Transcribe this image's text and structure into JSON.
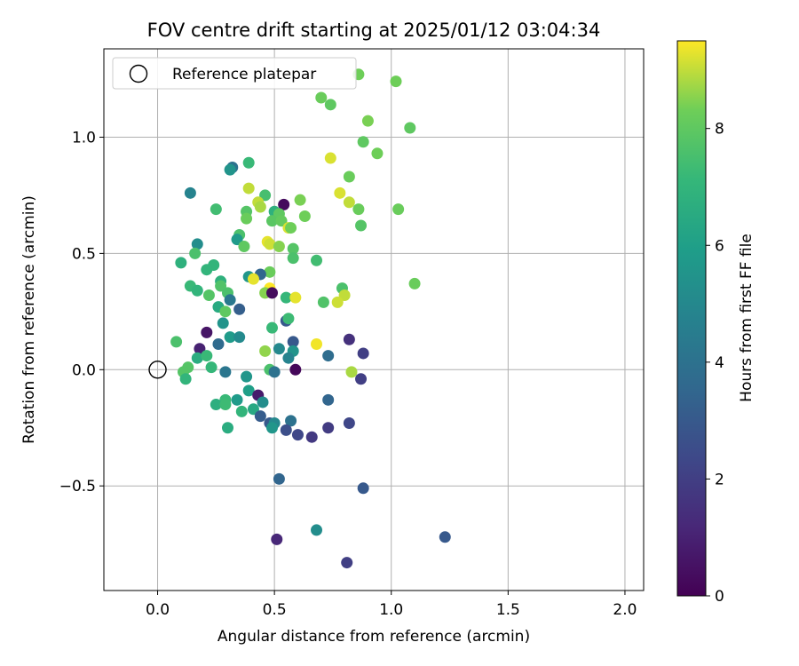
{
  "chart_data": {
    "type": "scatter",
    "title": "FOV centre drift starting at 2025/01/12 03:04:34",
    "xlabel": "Angular distance from reference (arcmin)",
    "ylabel": "Rotation from reference (arcmin)",
    "xlim": [
      -0.23,
      2.08
    ],
    "ylim": [
      -0.95,
      1.38
    ],
    "xticks": [
      0.0,
      0.5,
      1.0,
      1.5,
      2.0
    ],
    "xtick_labels": [
      "0.0",
      "0.5",
      "1.0",
      "1.5",
      "2.0"
    ],
    "yticks": [
      -0.5,
      0.0,
      0.5,
      1.0
    ],
    "ytick_labels": [
      "−0.5",
      "0.0",
      "0.5",
      "1.0"
    ],
    "grid": true,
    "legend": {
      "position": "top-left",
      "entries": [
        "Reference platepar"
      ]
    },
    "reference_point": {
      "x": 0.0,
      "y": 0.0
    },
    "colorbar": {
      "label": "Hours from first FF file",
      "range": [
        0,
        9.5
      ],
      "ticks": [
        0,
        2,
        4,
        6,
        8
      ],
      "tick_labels": [
        "0",
        "2",
        "4",
        "6",
        "8"
      ],
      "colormap": "viridis"
    },
    "points": [
      {
        "x": 0.86,
        "y": 1.27,
        "h": 8.3
      },
      {
        "x": 1.02,
        "y": 1.24,
        "h": 8.3
      },
      {
        "x": 0.7,
        "y": 1.17,
        "h": 8.2
      },
      {
        "x": 0.74,
        "y": 1.14,
        "h": 8.0
      },
      {
        "x": 0.9,
        "y": 1.07,
        "h": 8.4
      },
      {
        "x": 1.08,
        "y": 1.04,
        "h": 8.0
      },
      {
        "x": 0.88,
        "y": 0.98,
        "h": 8.0
      },
      {
        "x": 0.94,
        "y": 0.93,
        "h": 8.3
      },
      {
        "x": 0.74,
        "y": 0.91,
        "h": 9.2
      },
      {
        "x": 0.39,
        "y": 0.89,
        "h": 7.2
      },
      {
        "x": 0.32,
        "y": 0.87,
        "h": 4.0
      },
      {
        "x": 0.31,
        "y": 0.86,
        "h": 5.5
      },
      {
        "x": 0.82,
        "y": 0.83,
        "h": 8.2
      },
      {
        "x": 0.14,
        "y": 0.76,
        "h": 4.8
      },
      {
        "x": 0.39,
        "y": 0.78,
        "h": 9.0
      },
      {
        "x": 0.78,
        "y": 0.76,
        "h": 9.2
      },
      {
        "x": 0.46,
        "y": 0.75,
        "h": 7.5
      },
      {
        "x": 0.61,
        "y": 0.73,
        "h": 8.4
      },
      {
        "x": 0.82,
        "y": 0.72,
        "h": 9.0
      },
      {
        "x": 0.43,
        "y": 0.72,
        "h": 9.0
      },
      {
        "x": 0.54,
        "y": 0.71,
        "h": 0.3
      },
      {
        "x": 0.44,
        "y": 0.7,
        "h": 8.8
      },
      {
        "x": 0.86,
        "y": 0.69,
        "h": 8.2
      },
      {
        "x": 1.03,
        "y": 0.69,
        "h": 8.2
      },
      {
        "x": 0.25,
        "y": 0.69,
        "h": 7.4
      },
      {
        "x": 0.38,
        "y": 0.68,
        "h": 7.8
      },
      {
        "x": 0.5,
        "y": 0.68,
        "h": 6.8
      },
      {
        "x": 0.52,
        "y": 0.67,
        "h": 8.0
      },
      {
        "x": 0.63,
        "y": 0.66,
        "h": 8.3
      },
      {
        "x": 0.38,
        "y": 0.65,
        "h": 8.2
      },
      {
        "x": 0.49,
        "y": 0.64,
        "h": 7.9
      },
      {
        "x": 0.53,
        "y": 0.64,
        "h": 8.1
      },
      {
        "x": 0.87,
        "y": 0.62,
        "h": 7.8
      },
      {
        "x": 0.56,
        "y": 0.61,
        "h": 9.2
      },
      {
        "x": 0.57,
        "y": 0.61,
        "h": 8.3
      },
      {
        "x": 0.35,
        "y": 0.58,
        "h": 7.6
      },
      {
        "x": 0.34,
        "y": 0.56,
        "h": 5.8
      },
      {
        "x": 0.17,
        "y": 0.54,
        "h": 5.2
      },
      {
        "x": 0.47,
        "y": 0.55,
        "h": 9.3
      },
      {
        "x": 0.48,
        "y": 0.54,
        "h": 9.1
      },
      {
        "x": 0.52,
        "y": 0.53,
        "h": 8.5
      },
      {
        "x": 0.37,
        "y": 0.53,
        "h": 8.0
      },
      {
        "x": 0.58,
        "y": 0.52,
        "h": 7.8
      },
      {
        "x": 0.16,
        "y": 0.5,
        "h": 7.6
      },
      {
        "x": 0.58,
        "y": 0.48,
        "h": 7.6
      },
      {
        "x": 0.68,
        "y": 0.47,
        "h": 7.4
      },
      {
        "x": 0.1,
        "y": 0.46,
        "h": 6.8
      },
      {
        "x": 0.24,
        "y": 0.45,
        "h": 7.0
      },
      {
        "x": 0.21,
        "y": 0.43,
        "h": 7.0
      },
      {
        "x": 0.48,
        "y": 0.42,
        "h": 8.2
      },
      {
        "x": 0.44,
        "y": 0.41,
        "h": 3.5
      },
      {
        "x": 0.39,
        "y": 0.4,
        "h": 5.6
      },
      {
        "x": 0.41,
        "y": 0.39,
        "h": 9.3
      },
      {
        "x": 0.27,
        "y": 0.38,
        "h": 6.8
      },
      {
        "x": 1.1,
        "y": 0.37,
        "h": 8.2
      },
      {
        "x": 0.14,
        "y": 0.36,
        "h": 7.2
      },
      {
        "x": 0.27,
        "y": 0.36,
        "h": 7.7
      },
      {
        "x": 0.48,
        "y": 0.35,
        "h": 9.5
      },
      {
        "x": 0.79,
        "y": 0.35,
        "h": 7.6
      },
      {
        "x": 0.17,
        "y": 0.34,
        "h": 7.0
      },
      {
        "x": 0.46,
        "y": 0.33,
        "h": 8.5
      },
      {
        "x": 0.49,
        "y": 0.33,
        "h": 0.3
      },
      {
        "x": 0.3,
        "y": 0.33,
        "h": 7.6
      },
      {
        "x": 0.22,
        "y": 0.32,
        "h": 7.8
      },
      {
        "x": 0.55,
        "y": 0.31,
        "h": 7.1
      },
      {
        "x": 0.59,
        "y": 0.31,
        "h": 9.3
      },
      {
        "x": 0.8,
        "y": 0.32,
        "h": 9.0
      },
      {
        "x": 0.77,
        "y": 0.29,
        "h": 9.1
      },
      {
        "x": 0.71,
        "y": 0.29,
        "h": 7.7
      },
      {
        "x": 0.31,
        "y": 0.3,
        "h": 4.3
      },
      {
        "x": 0.26,
        "y": 0.27,
        "h": 6.5
      },
      {
        "x": 0.29,
        "y": 0.25,
        "h": 8.0
      },
      {
        "x": 0.35,
        "y": 0.26,
        "h": 3.2
      },
      {
        "x": 0.55,
        "y": 0.21,
        "h": 3.0
      },
      {
        "x": 0.56,
        "y": 0.22,
        "h": 7.3
      },
      {
        "x": 0.28,
        "y": 0.2,
        "h": 5.5
      },
      {
        "x": 0.49,
        "y": 0.18,
        "h": 7.2
      },
      {
        "x": 0.21,
        "y": 0.16,
        "h": 0.6
      },
      {
        "x": 0.31,
        "y": 0.14,
        "h": 5.8
      },
      {
        "x": 0.35,
        "y": 0.14,
        "h": 5.1
      },
      {
        "x": 0.08,
        "y": 0.12,
        "h": 7.6
      },
      {
        "x": 0.58,
        "y": 0.12,
        "h": 3.0
      },
      {
        "x": 0.82,
        "y": 0.13,
        "h": 1.5
      },
      {
        "x": 0.26,
        "y": 0.11,
        "h": 3.7
      },
      {
        "x": 0.18,
        "y": 0.09,
        "h": 1.0
      },
      {
        "x": 0.52,
        "y": 0.09,
        "h": 5.0
      },
      {
        "x": 0.68,
        "y": 0.11,
        "h": 9.4
      },
      {
        "x": 0.46,
        "y": 0.08,
        "h": 8.6
      },
      {
        "x": 0.58,
        "y": 0.08,
        "h": 5.5
      },
      {
        "x": 0.73,
        "y": 0.06,
        "h": 3.8
      },
      {
        "x": 0.88,
        "y": 0.07,
        "h": 2.0
      },
      {
        "x": 0.17,
        "y": 0.05,
        "h": 6.6
      },
      {
        "x": 0.21,
        "y": 0.06,
        "h": 7.2
      },
      {
        "x": 0.56,
        "y": 0.05,
        "h": 4.8
      },
      {
        "x": 0.13,
        "y": 0.01,
        "h": 7.8
      },
      {
        "x": 0.23,
        "y": 0.01,
        "h": 7.1
      },
      {
        "x": 0.48,
        "y": 0.0,
        "h": 7.6
      },
      {
        "x": 0.59,
        "y": 0.0,
        "h": 0.2
      },
      {
        "x": 0.11,
        "y": -0.01,
        "h": 7.8
      },
      {
        "x": 0.29,
        "y": -0.01,
        "h": 4.2
      },
      {
        "x": 0.5,
        "y": -0.01,
        "h": 4.0
      },
      {
        "x": 0.83,
        "y": -0.01,
        "h": 8.8
      },
      {
        "x": 0.12,
        "y": -0.04,
        "h": 7.0
      },
      {
        "x": 0.38,
        "y": -0.03,
        "h": 5.6
      },
      {
        "x": 0.87,
        "y": -0.04,
        "h": 2.0
      },
      {
        "x": 0.39,
        "y": -0.09,
        "h": 6.0
      },
      {
        "x": 0.43,
        "y": -0.11,
        "h": 0.8
      },
      {
        "x": 0.29,
        "y": -0.13,
        "h": 7.2
      },
      {
        "x": 0.73,
        "y": -0.13,
        "h": 3.5
      },
      {
        "x": 0.25,
        "y": -0.15,
        "h": 6.7
      },
      {
        "x": 0.29,
        "y": -0.15,
        "h": 7.3
      },
      {
        "x": 0.34,
        "y": -0.13,
        "h": 5.8
      },
      {
        "x": 0.45,
        "y": -0.14,
        "h": 5.2
      },
      {
        "x": 0.36,
        "y": -0.18,
        "h": 7.0
      },
      {
        "x": 0.41,
        "y": -0.17,
        "h": 6.4
      },
      {
        "x": 0.44,
        "y": -0.2,
        "h": 3.1
      },
      {
        "x": 0.57,
        "y": -0.22,
        "h": 4.0
      },
      {
        "x": 0.48,
        "y": -0.23,
        "h": 3.0
      },
      {
        "x": 0.5,
        "y": -0.23,
        "h": 5.0
      },
      {
        "x": 0.49,
        "y": -0.25,
        "h": 5.6
      },
      {
        "x": 0.55,
        "y": -0.26,
        "h": 2.6
      },
      {
        "x": 0.73,
        "y": -0.25,
        "h": 1.9
      },
      {
        "x": 0.82,
        "y": -0.23,
        "h": 2.3
      },
      {
        "x": 0.3,
        "y": -0.25,
        "h": 6.6
      },
      {
        "x": 0.6,
        "y": -0.28,
        "h": 2.3
      },
      {
        "x": 0.66,
        "y": -0.29,
        "h": 1.8
      },
      {
        "x": 0.52,
        "y": -0.47,
        "h": 3.5
      },
      {
        "x": 0.88,
        "y": -0.51,
        "h": 3.0
      },
      {
        "x": 0.68,
        "y": -0.69,
        "h": 5.2
      },
      {
        "x": 0.51,
        "y": -0.73,
        "h": 1.2
      },
      {
        "x": 1.23,
        "y": -0.72,
        "h": 3.0
      },
      {
        "x": 0.81,
        "y": -0.83,
        "h": 2.0
      }
    ]
  }
}
